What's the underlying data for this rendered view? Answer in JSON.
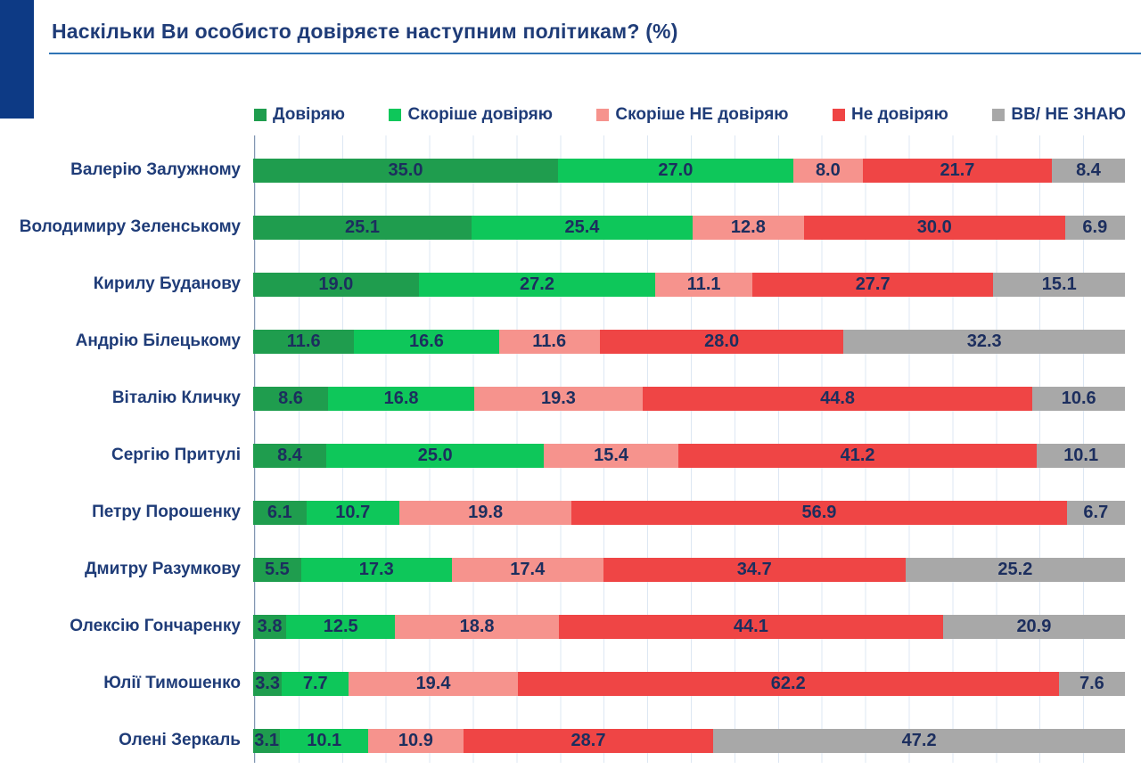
{
  "page": {
    "title": "Наскільки Ви особисто довіряєте наступним політикам? (%)"
  },
  "chart_data": {
    "type": "bar",
    "orientation": "horizontal",
    "stacked": true,
    "title": "Наскільки Ви особисто довіряєте наступним політикам? (%)",
    "xlabel": "",
    "ylabel": "",
    "xlim": [
      0,
      100
    ],
    "grid": "vertical-light",
    "legend_position": "top",
    "value_format": "one-decimal",
    "categories": [
      "Валерію Залужному",
      "Володимиру Зеленському",
      "Кирилу Буданову",
      "Андрію Білецькому",
      "Віталію Кличку",
      "Сергію Притулі",
      "Петру Порошенку",
      "Дмитру Разумкову",
      "Олексію Гончаренку",
      "Юлії Тимошенко",
      "Олені Зеркаль"
    ],
    "series": [
      {
        "name": "Довіряю",
        "color": "#1f9d4e",
        "values": [
          35.0,
          25.1,
          19.0,
          11.6,
          8.6,
          8.4,
          6.1,
          5.5,
          3.8,
          3.3,
          3.1
        ]
      },
      {
        "name": "Скоріше довіряю",
        "color": "#0ec75a",
        "values": [
          27.0,
          25.4,
          27.2,
          16.6,
          16.8,
          25.0,
          10.7,
          17.3,
          12.5,
          7.7,
          10.1
        ]
      },
      {
        "name": "Скоріше НЕ довіряю",
        "color": "#f6938d",
        "values": [
          8.0,
          12.8,
          11.1,
          11.6,
          19.3,
          15.4,
          19.8,
          17.4,
          18.8,
          19.4,
          10.9
        ]
      },
      {
        "name": "Не довіряю",
        "color": "#ef4545",
        "values": [
          21.7,
          30.0,
          27.7,
          28.0,
          44.8,
          41.2,
          56.9,
          34.7,
          44.1,
          62.2,
          28.7
        ]
      },
      {
        "name": "ВВ/ НЕ ЗНАЮ",
        "color": "#a8a8a8",
        "values": [
          8.4,
          6.9,
          15.1,
          32.3,
          10.6,
          10.1,
          6.7,
          25.2,
          20.9,
          7.6,
          47.2
        ]
      }
    ],
    "colors": {
      "title_text": "#1f3c78",
      "label_text": "#1c2e5e",
      "rule": "#2f74b5",
      "corner_block": "#0d3a85",
      "gridline": "#dde7f3"
    }
  }
}
